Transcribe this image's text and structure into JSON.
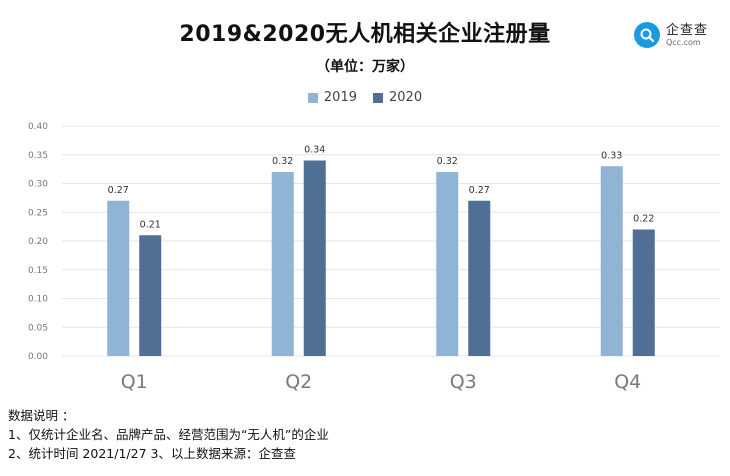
{
  "title": "2019&2020无人机相关企业注册量",
  "subtitle": "（单位：万家）",
  "logo": {
    "name": "企查查",
    "domain": "Qcc.com",
    "icon": "magnifier-q-icon",
    "color": "#1a9be0"
  },
  "notes": {
    "heading": "数据说明 ：",
    "line1": "1、仅统计企业名、品牌产品、经营范围为“无人机”的企业",
    "line2": "2、统计时间  2021/1/27    3、以上数据来源：企查查"
  },
  "chart_data": {
    "type": "bar",
    "categories": [
      "Q1",
      "Q2",
      "Q3",
      "Q4"
    ],
    "series": [
      {
        "name": "2019",
        "values": [
          0.27,
          0.32,
          0.32,
          0.33
        ],
        "color": "#8fb4d6"
      },
      {
        "name": "2020",
        "values": [
          0.21,
          0.34,
          0.27,
          0.22
        ],
        "color": "#4f6f94"
      }
    ],
    "ylim": [
      0,
      0.4
    ],
    "yticks": [
      "0.00",
      "0.05",
      "0.10",
      "0.15",
      "0.20",
      "0.25",
      "0.30",
      "0.35",
      "0.40"
    ],
    "grid": true,
    "legend": "top"
  }
}
